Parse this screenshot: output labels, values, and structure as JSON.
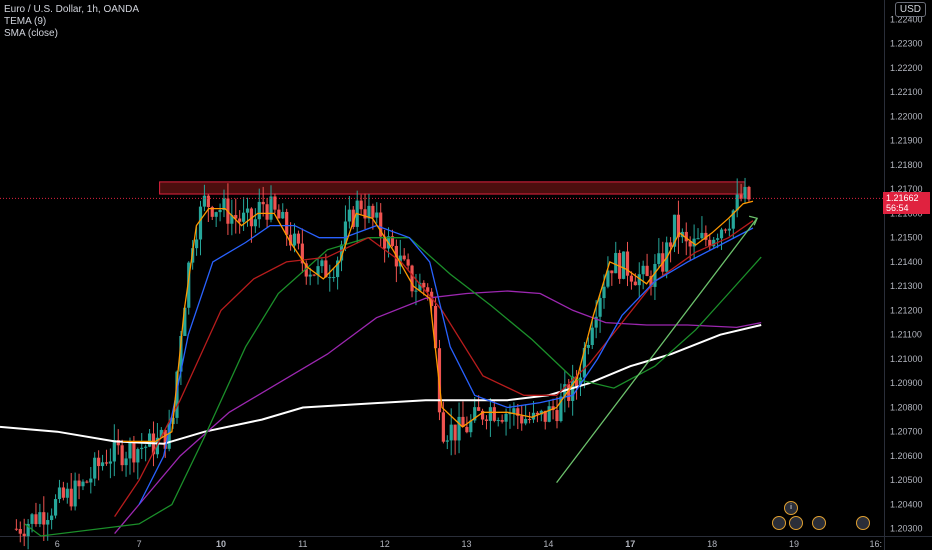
{
  "header": {
    "symbol_line": "Euro / U.S. Dollar, 1h, OANDA",
    "indicator1": "TEMA (9)",
    "indicator2": "SMA (close)"
  },
  "currency_button": "USD",
  "last_price": {
    "price": "1.21662",
    "countdown": "56:54",
    "value": 1.21662
  },
  "colors": {
    "background": "#000000",
    "up_candle": "#26a69a",
    "down_candle": "#ef5350",
    "resistance_zone": "#8b1a1a",
    "price_line": "#e0223f",
    "sma_white": "#ffffff",
    "sma_purple": "#9c27b0",
    "sma_green": "#1b8f2a",
    "sma_red": "#b71c1c",
    "ema_blue": "#2962ff",
    "tema_orange": "#ff9800",
    "trendline": "#6cc26c"
  },
  "chart_data": {
    "type": "candlestick",
    "symbol": "Euro / U.S. Dollar",
    "timeframe": "1h",
    "source": "OANDA",
    "y_ticks": [
      "1.22400",
      "1.22300",
      "1.22200",
      "1.22100",
      "1.22000",
      "1.21900",
      "1.21800",
      "1.21700",
      "1.21600",
      "1.21500",
      "1.21400",
      "1.21300",
      "1.21200",
      "1.21100",
      "1.21000",
      "1.20900",
      "1.20800",
      "1.20700",
      "1.20600",
      "1.20500",
      "1.20400",
      "1.20300"
    ],
    "ylim": [
      1.2027,
      1.2248
    ],
    "x_ticks": [
      {
        "label": "6",
        "x": 0.5,
        "bold": false
      },
      {
        "label": "7",
        "x": 1.5,
        "bold": false
      },
      {
        "label": "10",
        "x": 2.5,
        "bold": true
      },
      {
        "label": "11",
        "x": 3.5,
        "bold": false
      },
      {
        "label": "12",
        "x": 4.5,
        "bold": false
      },
      {
        "label": "13",
        "x": 5.5,
        "bold": false
      },
      {
        "label": "14",
        "x": 6.5,
        "bold": false
      },
      {
        "label": "17",
        "x": 7.5,
        "bold": true
      },
      {
        "label": "18",
        "x": 8.5,
        "bold": false
      },
      {
        "label": "19",
        "x": 9.5,
        "bold": false
      },
      {
        "label": "16:",
        "x": 10.5,
        "bold": false
      }
    ],
    "xlim": [
      -0.2,
      10.6
    ],
    "price_path": [
      [
        0.0,
        1.203
      ],
      [
        0.8,
        1.2047
      ],
      [
        1.1,
        1.206
      ],
      [
        1.4,
        1.2063
      ],
      [
        1.7,
        1.2065
      ],
      [
        1.9,
        1.207
      ],
      [
        2.0,
        1.211
      ],
      [
        2.15,
        1.215
      ],
      [
        2.3,
        1.2165
      ],
      [
        2.5,
        1.2162
      ],
      [
        2.7,
        1.2158
      ],
      [
        2.9,
        1.2155
      ],
      [
        3.0,
        1.2165
      ],
      [
        3.2,
        1.2158
      ],
      [
        3.35,
        1.215
      ],
      [
        3.5,
        1.214
      ],
      [
        3.7,
        1.2135
      ],
      [
        3.9,
        1.214
      ],
      [
        4.05,
        1.2155
      ],
      [
        4.2,
        1.2165
      ],
      [
        4.4,
        1.2155
      ],
      [
        4.6,
        1.2145
      ],
      [
        4.85,
        1.213
      ],
      [
        5.05,
        1.213
      ],
      [
        5.2,
        1.2072
      ],
      [
        5.4,
        1.207
      ],
      [
        5.55,
        1.2073
      ],
      [
        5.75,
        1.208
      ],
      [
        6.05,
        1.2078
      ],
      [
        6.35,
        1.2074
      ],
      [
        6.6,
        1.208
      ],
      [
        6.85,
        1.209
      ],
      [
        7.05,
        1.212
      ],
      [
        7.25,
        1.214
      ],
      [
        7.45,
        1.2138
      ],
      [
        7.7,
        1.2132
      ],
      [
        7.9,
        1.214
      ],
      [
        8.05,
        1.2155
      ],
      [
        8.2,
        1.2145
      ],
      [
        8.45,
        1.215
      ],
      [
        8.7,
        1.2158
      ],
      [
        8.85,
        1.2166
      ],
      [
        8.95,
        1.2166
      ]
    ],
    "resistance_zone": {
      "x": [
        1.75,
        8.9
      ],
      "y": [
        1.2168,
        1.2173
      ]
    },
    "indicators": [
      {
        "name": "SMA white",
        "color": "#ffffff",
        "points": [
          [
            -0.2,
            1.2072
          ],
          [
            0.5,
            1.207
          ],
          [
            1.2,
            1.2066
          ],
          [
            1.8,
            1.2065
          ],
          [
            2.3,
            1.207
          ],
          [
            3.0,
            1.2075
          ],
          [
            3.5,
            1.208
          ],
          [
            4.5,
            1.2082
          ],
          [
            5.0,
            1.2083
          ],
          [
            6.0,
            1.2083
          ],
          [
            6.5,
            1.2085
          ],
          [
            7.0,
            1.209
          ],
          [
            7.5,
            1.2097
          ],
          [
            8.0,
            1.2102
          ],
          [
            8.6,
            1.211
          ],
          [
            9.1,
            1.2114
          ]
        ]
      },
      {
        "name": "SMA purple",
        "color": "#9c27b0",
        "points": [
          [
            1.2,
            1.2028
          ],
          [
            1.5,
            1.204
          ],
          [
            2.0,
            1.206
          ],
          [
            2.6,
            1.2078
          ],
          [
            3.2,
            1.209
          ],
          [
            3.8,
            1.2102
          ],
          [
            4.4,
            1.2117
          ],
          [
            5.0,
            1.2125
          ],
          [
            5.5,
            1.2127
          ],
          [
            6.0,
            1.2128
          ],
          [
            6.4,
            1.2127
          ],
          [
            6.8,
            1.212
          ],
          [
            7.2,
            1.2115
          ],
          [
            7.7,
            1.2114
          ],
          [
            8.2,
            1.2114
          ],
          [
            8.8,
            1.2113
          ],
          [
            9.1,
            1.2115
          ]
        ]
      },
      {
        "name": "SMA green",
        "color": "#1b8f2a",
        "points": [
          [
            0.1,
            1.2032
          ],
          [
            0.3,
            1.2027
          ],
          [
            1.5,
            1.2032
          ],
          [
            1.9,
            1.204
          ],
          [
            2.3,
            1.2068
          ],
          [
            2.8,
            1.2105
          ],
          [
            3.2,
            1.2127
          ],
          [
            3.8,
            1.2145
          ],
          [
            4.3,
            1.215
          ],
          [
            4.8,
            1.215
          ],
          [
            5.3,
            1.2135
          ],
          [
            5.8,
            1.2122
          ],
          [
            6.3,
            1.2108
          ],
          [
            6.8,
            1.2092
          ],
          [
            7.3,
            1.2088
          ],
          [
            7.8,
            1.2097
          ],
          [
            8.3,
            1.2112
          ],
          [
            8.7,
            1.2127
          ],
          [
            9.1,
            1.2142
          ]
        ]
      },
      {
        "name": "SMA red",
        "color": "#b71c1c",
        "points": [
          [
            1.2,
            1.2035
          ],
          [
            1.5,
            1.205
          ],
          [
            2.0,
            1.2083
          ],
          [
            2.5,
            1.212
          ],
          [
            2.9,
            1.2133
          ],
          [
            3.3,
            1.214
          ],
          [
            3.8,
            1.2142
          ],
          [
            4.3,
            1.215
          ],
          [
            4.7,
            1.214
          ],
          [
            5.2,
            1.212
          ],
          [
            5.7,
            1.2093
          ],
          [
            6.2,
            1.2085
          ],
          [
            6.6,
            1.2085
          ],
          [
            7.0,
            1.2098
          ],
          [
            7.4,
            1.2115
          ],
          [
            7.8,
            1.2132
          ],
          [
            8.3,
            1.2144
          ],
          [
            8.7,
            1.215
          ],
          [
            9.0,
            1.2157
          ]
        ]
      },
      {
        "name": "EMA blue",
        "color": "#2962ff",
        "points": [
          [
            1.5,
            1.204
          ],
          [
            1.8,
            1.206
          ],
          [
            2.1,
            1.211
          ],
          [
            2.4,
            1.214
          ],
          [
            2.8,
            1.2148
          ],
          [
            3.1,
            1.2155
          ],
          [
            3.4,
            1.2155
          ],
          [
            3.7,
            1.215
          ],
          [
            4.0,
            1.215
          ],
          [
            4.4,
            1.2155
          ],
          [
            4.8,
            1.215
          ],
          [
            5.05,
            1.214
          ],
          [
            5.3,
            1.2105
          ],
          [
            5.6,
            1.2085
          ],
          [
            6.0,
            1.208
          ],
          [
            6.4,
            1.2082
          ],
          [
            6.8,
            1.2085
          ],
          [
            7.1,
            1.21
          ],
          [
            7.4,
            1.2118
          ],
          [
            7.8,
            1.2132
          ],
          [
            8.2,
            1.214
          ],
          [
            8.6,
            1.2147
          ],
          [
            9.0,
            1.2154
          ]
        ]
      },
      {
        "name": "TEMA (9)",
        "color": "#ff9800",
        "points": [
          [
            1.3,
            1.2066
          ],
          [
            1.7,
            1.2066
          ],
          [
            1.9,
            1.207
          ],
          [
            2.05,
            1.212
          ],
          [
            2.2,
            1.2155
          ],
          [
            2.35,
            1.2162
          ],
          [
            2.55,
            1.2162
          ],
          [
            2.75,
            1.2155
          ],
          [
            2.95,
            1.216
          ],
          [
            3.15,
            1.216
          ],
          [
            3.35,
            1.2148
          ],
          [
            3.55,
            1.2138
          ],
          [
            3.75,
            1.2133
          ],
          [
            3.95,
            1.214
          ],
          [
            4.15,
            1.216
          ],
          [
            4.35,
            1.2158
          ],
          [
            4.6,
            1.2145
          ],
          [
            4.85,
            1.213
          ],
          [
            5.05,
            1.2125
          ],
          [
            5.2,
            1.208
          ],
          [
            5.45,
            1.2072
          ],
          [
            5.7,
            1.2078
          ],
          [
            6.0,
            1.2078
          ],
          [
            6.3,
            1.2076
          ],
          [
            6.6,
            1.208
          ],
          [
            6.85,
            1.2092
          ],
          [
            7.05,
            1.2118
          ],
          [
            7.25,
            1.214
          ],
          [
            7.45,
            1.2137
          ],
          [
            7.7,
            1.2131
          ],
          [
            7.95,
            1.2142
          ],
          [
            8.1,
            1.2152
          ],
          [
            8.3,
            1.2147
          ],
          [
            8.5,
            1.2152
          ],
          [
            8.7,
            1.2158
          ],
          [
            8.88,
            1.2164
          ],
          [
            9.0,
            1.2165
          ]
        ]
      }
    ],
    "trendline": {
      "from": [
        6.6,
        1.2049
      ],
      "to": [
        9.05,
        1.2158
      ]
    }
  }
}
